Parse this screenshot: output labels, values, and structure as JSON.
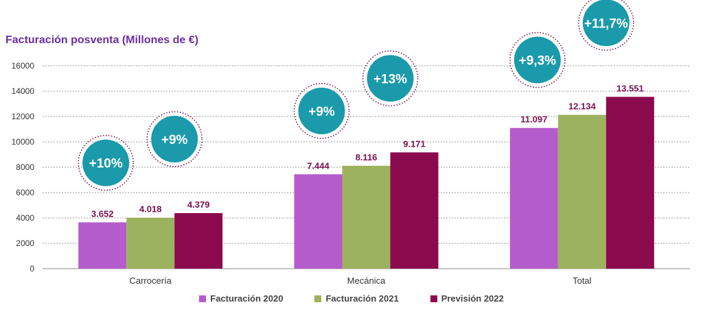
{
  "chart_data": {
    "type": "bar",
    "title": "Facturación posventa (Millones de €)",
    "xlabel": "",
    "ylabel": "",
    "ylim": [
      0,
      16000
    ],
    "yticks": [
      "0",
      "2000",
      "4000",
      "6000",
      "8000",
      "10000",
      "12000",
      "14000",
      "16000"
    ],
    "categories": [
      "Carrocería",
      "Mecánica",
      "Total"
    ],
    "grid": true,
    "legend_position": "bottom",
    "series": [
      {
        "name": "Facturación 2020",
        "color": "#b55ccc",
        "values": [
          3652,
          7444,
          11097
        ],
        "labels": [
          "3.652",
          "7.444",
          "11.097"
        ]
      },
      {
        "name": "Facturación 2021",
        "color": "#9db25e",
        "values": [
          4018,
          8116,
          12134
        ],
        "labels": [
          "4.018",
          "8.116",
          "12.134"
        ]
      },
      {
        "name": "Previsión 2022",
        "color": "#8b0a4e",
        "values": [
          4379,
          9171,
          13551
        ],
        "labels": [
          "4.379",
          "9.171",
          "13.551"
        ]
      }
    ],
    "annotations": [
      {
        "category": "Carrocería",
        "pair": "2020-2021",
        "text": "+10%"
      },
      {
        "category": "Carrocería",
        "pair": "2021-2022",
        "text": "+9%"
      },
      {
        "category": "Mecánica",
        "pair": "2020-2021",
        "text": "+9%"
      },
      {
        "category": "Mecánica",
        "pair": "2021-2022",
        "text": "+13%"
      },
      {
        "category": "Total",
        "pair": "2020-2021",
        "text": "+9,3%"
      },
      {
        "category": "Total",
        "pair": "2021-2022",
        "text": "+11,7%"
      }
    ],
    "annotation_color": "#1a9aaa",
    "label_color": "#7a1050"
  }
}
